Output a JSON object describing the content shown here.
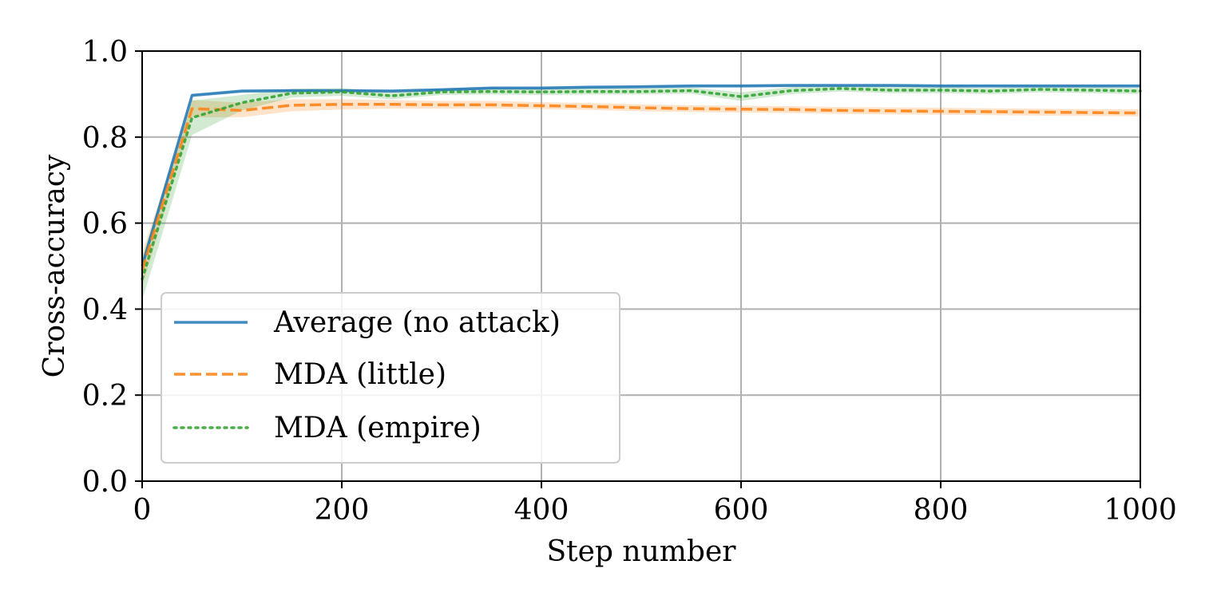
{
  "chart_data": {
    "type": "line",
    "title": "",
    "xlabel": "Step number",
    "ylabel": "Cross-accuracy",
    "xlim": [
      0,
      1000
    ],
    "ylim": [
      0.0,
      1.0
    ],
    "xticks": [
      0,
      200,
      400,
      600,
      800,
      1000
    ],
    "xtick_labels": [
      "0",
      "200",
      "400",
      "600",
      "800",
      "1000"
    ],
    "yticks": [
      0.0,
      0.2,
      0.4,
      0.6,
      0.8,
      1.0
    ],
    "ytick_labels": [
      "0.0",
      "0.2",
      "0.4",
      "0.6",
      "0.8",
      "1.0"
    ],
    "grid": true,
    "legend_position": "lower-left",
    "x": [
      0,
      50,
      100,
      150,
      200,
      250,
      300,
      350,
      400,
      450,
      500,
      550,
      600,
      650,
      700,
      750,
      800,
      850,
      900,
      950,
      1000
    ],
    "series": [
      {
        "name": "Average (no attack)",
        "color": "#1f77b4",
        "style": "solid",
        "values": [
          0.5,
          0.897,
          0.907,
          0.908,
          0.908,
          0.907,
          0.91,
          0.914,
          0.914,
          0.916,
          0.917,
          0.919,
          0.919,
          0.92,
          0.92,
          0.92,
          0.919,
          0.919,
          0.919,
          0.919,
          0.919
        ],
        "lower": [
          0.49,
          0.893,
          0.903,
          0.904,
          0.904,
          0.903,
          0.906,
          0.91,
          0.91,
          0.912,
          0.913,
          0.915,
          0.915,
          0.916,
          0.916,
          0.916,
          0.915,
          0.915,
          0.915,
          0.915,
          0.915
        ],
        "upper": [
          0.51,
          0.901,
          0.911,
          0.912,
          0.912,
          0.911,
          0.914,
          0.918,
          0.918,
          0.92,
          0.921,
          0.923,
          0.923,
          0.924,
          0.924,
          0.924,
          0.923,
          0.923,
          0.923,
          0.923,
          0.923
        ]
      },
      {
        "name": "MDA (little)",
        "color": "#ff7f0e",
        "style": "dashed",
        "values": [
          0.49,
          0.866,
          0.862,
          0.874,
          0.876,
          0.876,
          0.875,
          0.875,
          0.873,
          0.871,
          0.868,
          0.866,
          0.865,
          0.864,
          0.862,
          0.861,
          0.86,
          0.859,
          0.858,
          0.857,
          0.856
        ],
        "lower": [
          0.45,
          0.846,
          0.846,
          0.86,
          0.864,
          0.866,
          0.866,
          0.866,
          0.865,
          0.863,
          0.86,
          0.858,
          0.857,
          0.856,
          0.854,
          0.853,
          0.852,
          0.851,
          0.85,
          0.849,
          0.848
        ],
        "upper": [
          0.53,
          0.886,
          0.88,
          0.888,
          0.888,
          0.886,
          0.884,
          0.884,
          0.881,
          0.879,
          0.876,
          0.874,
          0.873,
          0.872,
          0.87,
          0.869,
          0.868,
          0.867,
          0.866,
          0.865,
          0.864
        ]
      },
      {
        "name": "MDA (empire)",
        "color": "#2ca02c",
        "style": "dotted",
        "values": [
          0.47,
          0.845,
          0.88,
          0.902,
          0.905,
          0.896,
          0.905,
          0.906,
          0.905,
          0.906,
          0.906,
          0.908,
          0.894,
          0.908,
          0.913,
          0.909,
          0.909,
          0.907,
          0.911,
          0.909,
          0.907
        ],
        "lower": [
          0.42,
          0.805,
          0.862,
          0.892,
          0.896,
          0.888,
          0.898,
          0.899,
          0.898,
          0.899,
          0.899,
          0.901,
          0.884,
          0.9,
          0.906,
          0.902,
          0.902,
          0.9,
          0.904,
          0.902,
          0.9
        ],
        "upper": [
          0.52,
          0.885,
          0.898,
          0.912,
          0.914,
          0.904,
          0.912,
          0.913,
          0.912,
          0.913,
          0.913,
          0.915,
          0.904,
          0.916,
          0.92,
          0.916,
          0.916,
          0.914,
          0.918,
          0.916,
          0.914
        ]
      }
    ]
  }
}
